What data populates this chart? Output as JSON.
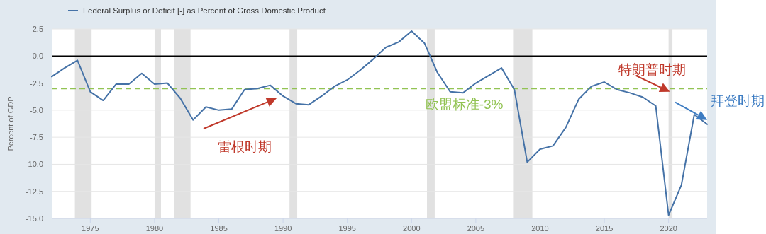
{
  "chart_data": {
    "type": "line",
    "ylabel": "Percent of GDP",
    "legend": "top left",
    "grid": "y",
    "x": [
      1972,
      1973,
      1974,
      1975,
      1976,
      1977,
      1978,
      1979,
      1980,
      1981,
      1982,
      1983,
      1984,
      1985,
      1986,
      1987,
      1988,
      1989,
      1990,
      1991,
      1992,
      1993,
      1994,
      1995,
      1996,
      1997,
      1998,
      1999,
      2000,
      2001,
      2002,
      2003,
      2004,
      2005,
      2006,
      2007,
      2008,
      2009,
      2010,
      2011,
      2012,
      2013,
      2014,
      2015,
      2016,
      2017,
      2018,
      2019,
      2020,
      2021,
      2022,
      2023
    ],
    "series": [
      {
        "name": "Federal Surplus or Deficit [-] as Percent of Gross Domestic Product",
        "color": "#4572a7",
        "values": [
          -1.9,
          -1.1,
          -0.4,
          -3.3,
          -4.1,
          -2.6,
          -2.6,
          -1.6,
          -2.6,
          -2.5,
          -3.9,
          -5.9,
          -4.7,
          -5.0,
          -4.9,
          -3.1,
          -3.0,
          -2.7,
          -3.7,
          -4.4,
          -4.5,
          -3.7,
          -2.8,
          -2.2,
          -1.3,
          -0.3,
          0.8,
          1.3,
          2.3,
          1.2,
          -1.5,
          -3.3,
          -3.4,
          -2.5,
          -1.8,
          -1.1,
          -3.1,
          -9.8,
          -8.6,
          -8.3,
          -6.6,
          -4.0,
          -2.8,
          -2.4,
          -3.1,
          -3.4,
          -3.8,
          -4.6,
          -14.7,
          -11.9,
          -5.4,
          -6.3
        ]
      }
    ],
    "xlim": [
      1972,
      2023
    ],
    "ylim": [
      -15,
      2.5
    ],
    "xticks": [
      1975,
      1980,
      1985,
      1990,
      1995,
      2000,
      2005,
      2010,
      2015,
      2020
    ],
    "yticks": [
      {
        "value": 2.5,
        "label": "2.5"
      },
      {
        "value": 0,
        "label": "0.0"
      },
      {
        "value": -2.5,
        "label": "-2.5"
      },
      {
        "value": -5,
        "label": "-5.0"
      },
      {
        "value": -7.5,
        "label": "-7.5"
      },
      {
        "value": -10,
        "label": "-10.0"
      },
      {
        "value": -12.5,
        "label": "-12.5"
      },
      {
        "value": -15,
        "label": "-15.0"
      }
    ],
    "bands": [
      {
        "axis": "x",
        "from": 1973.8,
        "to": 1975.1,
        "color": "#e1e1e1"
      },
      {
        "axis": "x",
        "from": 1980.0,
        "to": 1980.5,
        "color": "#e1e1e1"
      },
      {
        "axis": "x",
        "from": 1981.5,
        "to": 1982.8,
        "color": "#e1e1e1"
      },
      {
        "axis": "x",
        "from": 1990.5,
        "to": 1991.1,
        "color": "#e1e1e1"
      },
      {
        "axis": "x",
        "from": 2001.2,
        "to": 2001.8,
        "color": "#e1e1e1"
      },
      {
        "axis": "x",
        "from": 2007.9,
        "to": 2009.4,
        "color": "#e1e1e1"
      },
      {
        "axis": "x",
        "from": 2020.0,
        "to": 2020.3,
        "color": "#e1e1e1"
      }
    ],
    "ref_lines": [
      {
        "axis": "y",
        "value": 0,
        "color": "#000000",
        "line_style": "solid"
      },
      {
        "axis": "y",
        "value": -3,
        "label": "欧盟标准-3%",
        "color": "#92c353",
        "line_style": "dashed"
      }
    ],
    "annotations": [
      "雷根时期",
      {
        "text": "特朗普时期",
        "x": 2020.1,
        "y": -3.3
      },
      {
        "text": "拜登时期",
        "x": 2023,
        "y": -5.9
      }
    ]
  }
}
